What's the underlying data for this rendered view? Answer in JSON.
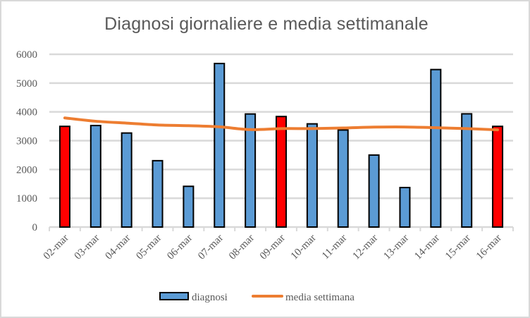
{
  "chart_data": {
    "type": "bar",
    "title": "Diagnosi giornaliere e media settimanale",
    "xlabel": "",
    "ylabel": "",
    "ylim": [
      0,
      6000
    ],
    "yticks": [
      0,
      1000,
      2000,
      3000,
      4000,
      5000,
      6000
    ],
    "grid": true,
    "legend_position": "bottom",
    "categories": [
      "02-mar",
      "03-mar",
      "04-mar",
      "05-mar",
      "06-mar",
      "07-mar",
      "08-mar",
      "09-mar",
      "10-mar",
      "11-mar",
      "12-mar",
      "13-mar",
      "14-mar",
      "15-mar",
      "16-mar"
    ],
    "series": [
      {
        "name": "diagnosi",
        "type": "bar",
        "color": "#5b9bd5",
        "highlight_color": "#ff0000",
        "highlighted_categories": [
          "02-mar",
          "09-mar",
          "16-mar"
        ],
        "values": [
          3497,
          3526,
          3266,
          2305,
          1414,
          5680,
          3927,
          3839,
          3584,
          3369,
          2501,
          1372,
          5470,
          3932,
          3497
        ]
      },
      {
        "name": "media settimana",
        "type": "line",
        "color": "#ed7d31",
        "values": [
          3790,
          3675,
          3610,
          3545,
          3520,
          3480,
          3385,
          3420,
          3420,
          3440,
          3470,
          3475,
          3450,
          3420,
          3375
        ]
      }
    ]
  },
  "legend": {
    "items": [
      {
        "label": "diagnosi",
        "symbol": "bar-swatch"
      },
      {
        "label": "media settimana",
        "symbol": "line-swatch"
      }
    ]
  },
  "colors": {
    "bar": "#5b9bd5",
    "bar_highlight": "#ff0000",
    "bar_outline": "#000000",
    "line": "#ed7d31",
    "grid": "#d9d9d9",
    "text": "#595959",
    "frame": "#d9d9d9"
  }
}
